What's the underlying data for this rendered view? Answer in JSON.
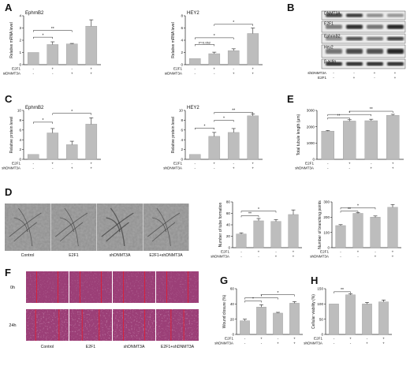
{
  "panels": {
    "A": {
      "label": "A"
    },
    "B": {
      "label": "B"
    },
    "C": {
      "label": "C"
    },
    "D": {
      "label": "D"
    },
    "E": {
      "label": "E"
    },
    "F": {
      "label": "F"
    },
    "G": {
      "label": "G"
    },
    "H": {
      "label": "H"
    }
  },
  "chart_data": [
    {
      "id": "A1",
      "panel": "A",
      "type": "bar",
      "title": "EphrnB2",
      "ylabel": "Relative mRNA level",
      "ylim": [
        0,
        4
      ],
      "yticks": [
        0,
        1,
        2,
        3,
        4
      ],
      "values": [
        1.0,
        1.65,
        1.7,
        3.15
      ],
      "errors": [
        0.0,
        0.22,
        0.04,
        0.52
      ],
      "factors": [
        {
          "name": "E2F1",
          "signs": [
            "-",
            "+",
            "-",
            "+"
          ]
        },
        {
          "name": "siDNMT3A",
          "signs": [
            "-",
            "-",
            "+",
            "+"
          ]
        }
      ],
      "brackets": [
        {
          "from": 0,
          "to": 1,
          "y": 2.25,
          "label": "*"
        },
        {
          "from": 0,
          "to": 2,
          "y": 2.8,
          "label": "**"
        }
      ]
    },
    {
      "id": "A2",
      "panel": "A",
      "type": "bar",
      "title": "HEY2",
      "ylabel": "Relative mRNA level",
      "ylim": [
        0,
        8
      ],
      "yticks": [
        0,
        2,
        4,
        6,
        8
      ],
      "values": [
        1.0,
        1.8,
        2.3,
        5.1
      ],
      "errors": [
        0.0,
        0.25,
        0.3,
        0.9
      ],
      "factors": [
        {
          "name": "E2F1",
          "signs": [
            "-",
            "+",
            "-",
            "+"
          ]
        },
        {
          "name": "siDNMT3A",
          "signs": [
            "-",
            "-",
            "+",
            "+"
          ]
        }
      ],
      "brackets": [
        {
          "from": 0,
          "to": 1,
          "y": 3.3,
          "label": "P=0.052"
        },
        {
          "from": 0,
          "to": 2,
          "y": 4.4,
          "label": "*"
        },
        {
          "from": 1,
          "to": 3,
          "y": 6.6,
          "label": "*"
        }
      ]
    },
    {
      "id": "C1",
      "panel": "C",
      "type": "bar",
      "title": "EphrnB2",
      "ylabel": "Relative protein level",
      "ylim": [
        0,
        10
      ],
      "yticks": [
        0,
        2,
        4,
        6,
        8,
        10
      ],
      "values": [
        1.0,
        5.4,
        3.0,
        7.2
      ],
      "errors": [
        0.0,
        0.9,
        0.7,
        1.3
      ],
      "factors": [
        {
          "name": "E2F1",
          "signs": [
            "-",
            "+",
            "-",
            "+"
          ]
        },
        {
          "name": "shDNMT3A",
          "signs": [
            "-",
            "-",
            "+",
            "+"
          ]
        }
      ],
      "brackets": [
        {
          "from": 0,
          "to": 1,
          "y": 7.6,
          "label": "*"
        },
        {
          "from": 1,
          "to": 3,
          "y": 9.4,
          "label": "*"
        }
      ]
    },
    {
      "id": "C2",
      "panel": "C",
      "type": "bar",
      "title": "HEY2",
      "ylabel": "Relative protein level",
      "ylim": [
        0,
        10
      ],
      "yticks": [
        0,
        2,
        4,
        6,
        8,
        10
      ],
      "values": [
        1.0,
        4.7,
        5.5,
        8.9
      ],
      "errors": [
        0.0,
        0.8,
        0.8,
        0.4
      ],
      "factors": [
        {
          "name": "E2F1",
          "signs": [
            "-",
            "+",
            "-",
            "+"
          ]
        },
        {
          "name": "shDNMT3A",
          "signs": [
            "-",
            "-",
            "+",
            "+"
          ]
        }
      ],
      "brackets": [
        {
          "from": 0,
          "to": 1,
          "y": 6.4,
          "label": "*"
        },
        {
          "from": 1,
          "to": 2,
          "y": 8.0,
          "label": "*"
        },
        {
          "from": 1,
          "to": 3,
          "y": 9.6,
          "label": "**"
        }
      ]
    },
    {
      "id": "E1",
      "panel": "E",
      "type": "bar",
      "title": "",
      "ylabel": "Total tubule length (μm)",
      "ylim": [
        0,
        3000
      ],
      "yticks": [
        0,
        1000,
        2000,
        3000
      ],
      "values": [
        1730,
        2350,
        2370,
        2700
      ],
      "errors": [
        40,
        80,
        90,
        60
      ],
      "factors": [
        {
          "name": "E2F1",
          "signs": [
            "-",
            "+",
            "-",
            "+"
          ]
        },
        {
          "name": "shDNMT3A",
          "signs": [
            "-",
            "-",
            "+",
            "+"
          ]
        }
      ],
      "brackets": [
        {
          "from": 0,
          "to": 1,
          "y": 2550,
          "label": "**"
        },
        {
          "from": 0,
          "to": 2,
          "y": 2750,
          "label": "*"
        },
        {
          "from": 1,
          "to": 3,
          "y": 2950,
          "label": "**"
        }
      ]
    },
    {
      "id": "D1",
      "panel": "D",
      "type": "bar",
      "title": "",
      "ylabel": "Number of tube formation",
      "ylim": [
        0,
        80
      ],
      "yticks": [
        0,
        20,
        40,
        60,
        80
      ],
      "values": [
        24,
        47,
        46,
        58
      ],
      "errors": [
        2,
        4,
        3,
        8
      ],
      "factors": [
        {
          "name": "E2F1",
          "signs": [
            "-",
            "+",
            "-",
            "+"
          ]
        },
        {
          "name": "shDNMT3A",
          "signs": [
            "-",
            "-",
            "+",
            "+"
          ]
        }
      ],
      "brackets": [
        {
          "from": 0,
          "to": 1,
          "y": 56,
          "label": "**"
        },
        {
          "from": 0,
          "to": 2,
          "y": 64,
          "label": "*"
        }
      ]
    },
    {
      "id": "D2",
      "panel": "D",
      "type": "bar",
      "title": "",
      "ylabel": "Number of branching points",
      "ylim": [
        0,
        300
      ],
      "yticks": [
        0,
        100,
        200,
        300
      ],
      "values": [
        145,
        225,
        200,
        265
      ],
      "errors": [
        6,
        4,
        8,
        18
      ],
      "factors": [
        {
          "name": "E2F1",
          "signs": [
            "-",
            "+",
            "-",
            "+"
          ]
        },
        {
          "name": "shDNMT3A",
          "signs": [
            "-",
            "-",
            "+",
            "+"
          ]
        }
      ],
      "brackets": [
        {
          "from": 0,
          "to": 1,
          "y": 240,
          "label": "**"
        },
        {
          "from": 0,
          "to": 2,
          "y": 262,
          "label": "*"
        }
      ]
    },
    {
      "id": "G1",
      "panel": "G",
      "type": "bar",
      "title": "",
      "ylabel": "Wound closure (%)",
      "ylim": [
        0,
        60
      ],
      "yticks": [
        0,
        20,
        40,
        60
      ],
      "values": [
        18,
        36,
        28,
        41
      ],
      "errors": [
        2,
        3,
        1,
        2
      ],
      "factors": [
        {
          "name": "E2F1",
          "signs": [
            "-",
            "+",
            "-",
            "+"
          ]
        },
        {
          "name": "shDNMT3A",
          "signs": [
            "-",
            "-",
            "+",
            "+"
          ]
        }
      ],
      "brackets": [
        {
          "from": 0,
          "to": 1,
          "y": 44,
          "label": "*"
        },
        {
          "from": 0,
          "to": 2,
          "y": 48,
          "label": "*"
        },
        {
          "from": 1,
          "to": 3,
          "y": 52,
          "label": "*"
        }
      ]
    },
    {
      "id": "H1",
      "panel": "H",
      "type": "bar",
      "title": "",
      "ylabel": "Cellular viability (%)",
      "ylim": [
        0,
        150
      ],
      "yticks": [
        0,
        50,
        100,
        150
      ],
      "values": [
        100,
        130,
        100,
        107
      ],
      "errors": [
        0,
        3,
        5,
        6
      ],
      "factors": [
        {
          "name": "E2F1",
          "signs": [
            "-",
            "+",
            "-",
            "+"
          ]
        },
        {
          "name": "shDNMT3A",
          "signs": [
            "-",
            "-",
            "+",
            "+"
          ]
        }
      ],
      "brackets": [
        {
          "from": 0,
          "to": 1,
          "y": 140,
          "label": "**"
        }
      ]
    }
  ],
  "blot": {
    "rows": [
      "DNMT3A",
      "E2F1",
      "EphrinB2",
      "Hey2",
      "β-actin"
    ],
    "factors": [
      {
        "name": "shDNMT3A",
        "signs": [
          "-",
          "-",
          "+",
          "+"
        ]
      },
      {
        "name": "E2F1",
        "signs": [
          "-",
          "+",
          "-",
          "+"
        ]
      }
    ]
  },
  "tube_captions": [
    "Control",
    "E2F1",
    "shDNMT3A",
    "E2F1+shDNMT3A"
  ],
  "wound": {
    "times": [
      "0h",
      "24h"
    ],
    "captions": [
      "Control",
      "E2F1",
      "shDNMT3A",
      "E2F1+shDNMT3A"
    ]
  },
  "colors": {
    "bar": "#bdbdbd",
    "wound_bg": "#9b3f77",
    "wound_cell": "#e7b8d8",
    "wound_line": "#e8192c",
    "micro_bg": "#8e8e8e"
  }
}
